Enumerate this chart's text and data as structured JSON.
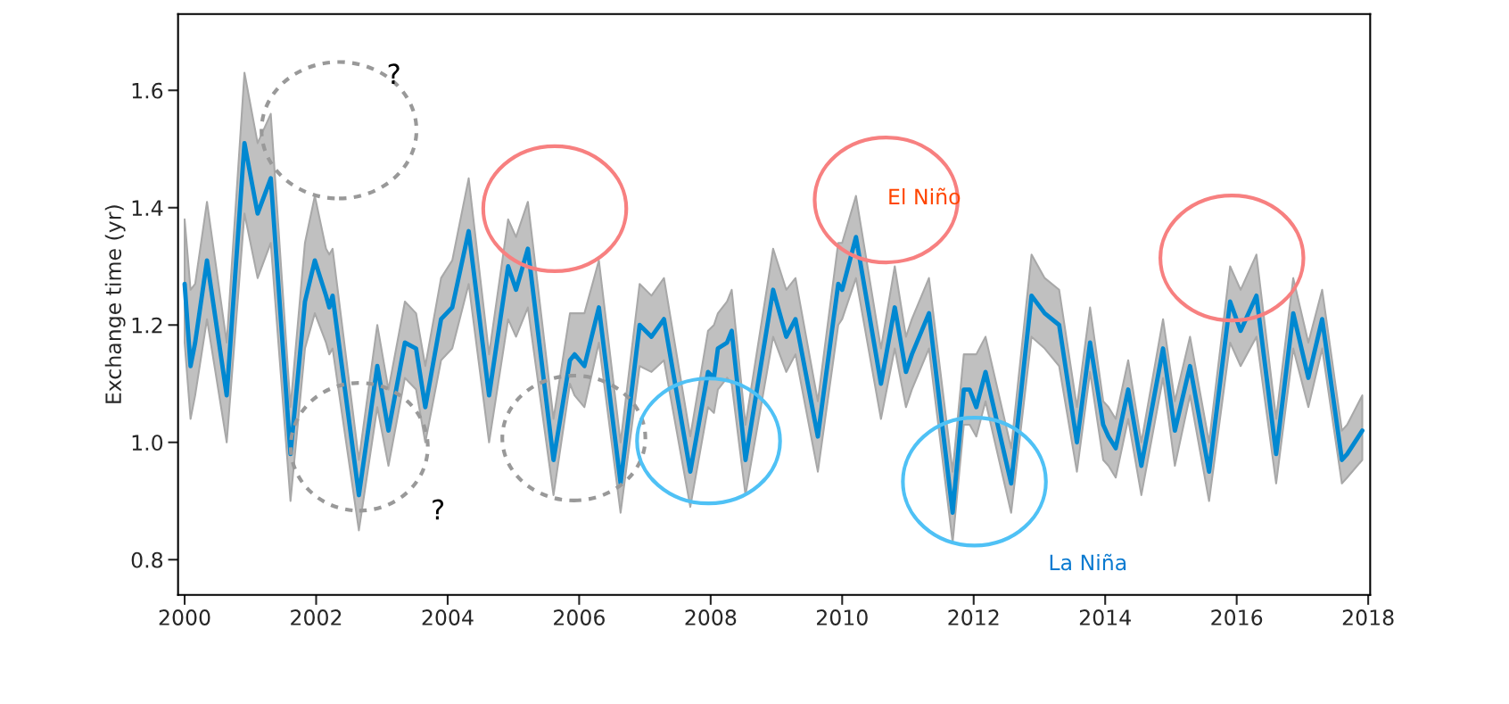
{
  "chart_data": {
    "type": "line",
    "ylabel": "Exchange time (yr)",
    "xlim": [
      1999.9,
      2018.03
    ],
    "ylim": [
      0.74,
      1.73
    ],
    "xticks": [
      2000,
      2002,
      2004,
      2006,
      2008,
      2010,
      2012,
      2014,
      2016,
      2018
    ],
    "yticks": [
      {
        "value": 0.8,
        "label": "0.8"
      },
      {
        "value": 1.0,
        "label": "1.0"
      },
      {
        "value": 1.2,
        "label": "1.2"
      },
      {
        "value": 1.4,
        "label": "1.4"
      },
      {
        "value": 1.6,
        "label": "1.6"
      }
    ],
    "grid": false,
    "legend": false,
    "marker": "none",
    "line_style": "solid",
    "annotations": [
      "?",
      "?",
      "El Niño",
      "La Niña"
    ],
    "series": [
      {
        "color": "#0088d1",
        "x": [
          2000.0,
          2000.09,
          2000.16,
          2000.34,
          2000.64,
          2000.91,
          2001.11,
          2001.31,
          2001.61,
          2001.83,
          2001.98,
          2002.15,
          2002.2,
          2002.25,
          2002.65,
          2002.93,
          2003.1,
          2003.35,
          2003.52,
          2003.66,
          2003.9,
          2004.07,
          2004.32,
          2004.63,
          2004.92,
          2005.04,
          2005.22,
          2005.61,
          2005.86,
          2005.93,
          2006.08,
          2006.3,
          2006.63,
          2006.92,
          2007.1,
          2007.29,
          2007.69,
          2007.96,
          2008.05,
          2008.11,
          2008.25,
          2008.32,
          2008.53,
          2008.95,
          2009.15,
          2009.29,
          2009.63,
          2009.94,
          2010.0,
          2010.21,
          2010.59,
          2010.8,
          2010.97,
          2011.06,
          2011.32,
          2011.68,
          2011.85,
          2011.94,
          2012.04,
          2012.18,
          2012.57,
          2012.88,
          2013.08,
          2013.3,
          2013.57,
          2013.77,
          2013.97,
          2014.05,
          2014.16,
          2014.35,
          2014.55,
          2014.88,
          2015.06,
          2015.29,
          2015.58,
          2015.9,
          2016.06,
          2016.3,
          2016.6,
          2016.86,
          2017.09,
          2017.3,
          2017.6,
          2017.68,
          2017.91
        ],
        "values": [
          1.27,
          1.13,
          1.17,
          1.31,
          1.08,
          1.51,
          1.39,
          1.45,
          0.98,
          1.24,
          1.31,
          1.25,
          1.23,
          1.25,
          0.91,
          1.13,
          1.02,
          1.17,
          1.16,
          1.06,
          1.21,
          1.23,
          1.36,
          1.08,
          1.3,
          1.26,
          1.33,
          0.97,
          1.14,
          1.15,
          1.13,
          1.23,
          0.93,
          1.2,
          1.18,
          1.21,
          0.95,
          1.12,
          1.11,
          1.16,
          1.17,
          1.19,
          0.97,
          1.26,
          1.18,
          1.21,
          1.01,
          1.27,
          1.26,
          1.35,
          1.1,
          1.23,
          1.12,
          1.15,
          1.22,
          0.88,
          1.09,
          1.09,
          1.06,
          1.12,
          0.93,
          1.25,
          1.22,
          1.2,
          1.0,
          1.17,
          1.03,
          1.01,
          0.99,
          1.09,
          0.96,
          1.16,
          1.02,
          1.13,
          0.95,
          1.24,
          1.19,
          1.25,
          0.98,
          1.22,
          1.11,
          1.21,
          0.97,
          0.98,
          1.02
        ],
        "lower": [
          1.17,
          1.04,
          1.08,
          1.21,
          1.0,
          1.39,
          1.28,
          1.34,
          0.9,
          1.16,
          1.22,
          1.17,
          1.15,
          1.16,
          0.85,
          1.06,
          0.96,
          1.11,
          1.09,
          1.0,
          1.14,
          1.16,
          1.27,
          1.0,
          1.21,
          1.18,
          1.23,
          0.91,
          1.1,
          1.08,
          1.06,
          1.17,
          0.88,
          1.13,
          1.12,
          1.14,
          0.89,
          1.06,
          1.05,
          1.09,
          1.11,
          1.1,
          0.91,
          1.18,
          1.12,
          1.15,
          0.95,
          1.2,
          1.21,
          1.28,
          1.04,
          1.16,
          1.06,
          1.09,
          1.16,
          0.83,
          1.03,
          1.03,
          1.01,
          1.07,
          0.88,
          1.18,
          1.16,
          1.13,
          0.95,
          1.12,
          0.97,
          0.96,
          0.94,
          1.04,
          0.91,
          1.11,
          0.96,
          1.08,
          0.9,
          1.17,
          1.13,
          1.18,
          0.93,
          1.16,
          1.06,
          1.16,
          0.93,
          0.94,
          0.97
        ],
        "upper": [
          1.38,
          1.26,
          1.27,
          1.41,
          1.17,
          1.63,
          1.51,
          1.56,
          1.06,
          1.34,
          1.42,
          1.33,
          1.32,
          1.33,
          0.97,
          1.2,
          1.09,
          1.24,
          1.22,
          1.13,
          1.28,
          1.31,
          1.45,
          1.15,
          1.38,
          1.35,
          1.41,
          1.04,
          1.22,
          1.22,
          1.22,
          1.31,
          1.0,
          1.27,
          1.25,
          1.28,
          1.01,
          1.19,
          1.2,
          1.22,
          1.24,
          1.26,
          1.03,
          1.33,
          1.26,
          1.28,
          1.07,
          1.34,
          1.34,
          1.42,
          1.16,
          1.3,
          1.18,
          1.21,
          1.28,
          0.95,
          1.15,
          1.15,
          1.15,
          1.18,
          0.99,
          1.32,
          1.28,
          1.26,
          1.06,
          1.23,
          1.07,
          1.06,
          1.04,
          1.14,
          1.0,
          1.21,
          1.07,
          1.18,
          1.0,
          1.3,
          1.26,
          1.32,
          1.04,
          1.28,
          1.17,
          1.26,
          1.02,
          1.03,
          1.08
        ]
      }
    ]
  }
}
